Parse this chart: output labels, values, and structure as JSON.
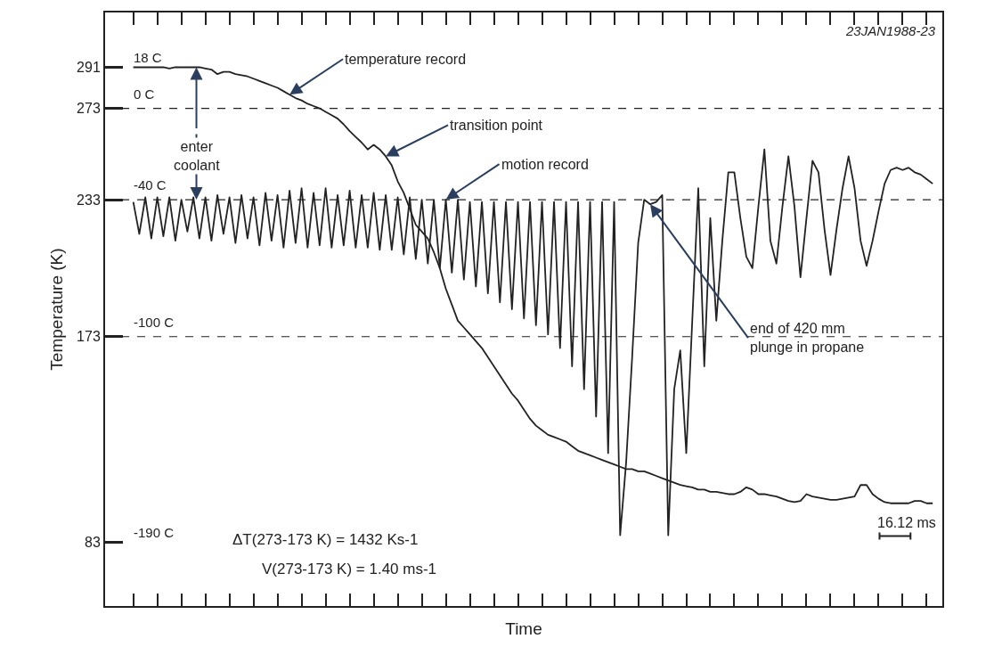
{
  "chart_data": {
    "type": "line",
    "xlabel": "Time",
    "ylabel": "Temperature (K)",
    "categories": [
      null,
      null,
      null,
      null,
      null,
      null,
      null,
      null,
      null,
      null,
      null,
      null,
      null,
      null,
      null,
      null,
      null,
      null,
      null,
      null,
      null,
      null,
      null,
      null,
      null,
      null,
      null,
      null,
      null,
      null,
      null,
      null,
      null,
      null,
      null,
      null,
      null,
      null,
      null,
      null,
      null,
      null,
      null,
      null,
      null,
      null,
      null,
      null,
      null,
      null,
      null,
      null,
      null,
      null,
      null,
      null,
      null,
      null,
      null,
      null,
      null,
      null,
      null,
      null,
      null,
      null,
      null,
      null,
      null,
      null,
      null,
      null,
      null,
      null,
      null,
      null,
      null,
      null,
      null,
      null,
      null,
      null,
      null,
      null,
      null,
      null,
      null,
      null,
      null,
      null,
      null,
      null,
      null,
      null,
      null,
      null,
      null,
      null,
      null,
      null,
      null,
      null,
      null,
      null,
      null,
      null,
      null,
      null,
      null,
      null,
      null,
      null,
      null,
      null,
      null,
      null,
      null,
      null,
      null,
      null,
      null,
      null,
      null,
      null,
      null,
      null,
      null,
      null,
      null,
      null,
      null,
      null,
      null,
      null
    ],
    "series": [
      {
        "color": "#222222",
        "values": [
          291,
          291,
          291,
          291,
          291,
          291,
          290.5,
          291,
          291,
          291,
          291,
          291,
          290.5,
          290,
          288,
          289,
          289,
          288,
          287.5,
          287,
          286,
          285,
          284,
          283,
          282,
          280.5,
          279,
          277.5,
          276.5,
          275,
          274,
          273,
          271.5,
          270,
          268.5,
          266,
          263,
          260.5,
          258,
          255,
          257,
          255,
          252,
          248,
          241,
          236,
          229,
          222,
          219,
          216,
          210,
          203,
          194,
          187,
          180,
          177,
          174,
          171,
          168,
          164,
          160,
          156,
          152,
          148,
          145,
          141,
          137,
          134,
          132,
          130,
          129,
          128,
          127,
          125,
          123,
          122,
          121,
          120,
          119,
          118,
          117,
          116,
          115,
          115,
          114,
          114,
          113,
          112,
          111,
          110,
          109,
          108,
          107.5,
          107,
          106,
          106,
          105,
          105,
          104.5,
          104,
          104,
          105,
          107,
          106,
          104,
          104,
          103.5,
          103,
          102,
          101,
          100.5,
          101,
          104,
          103,
          102.5,
          102,
          101.5,
          101.5,
          102,
          102.5,
          103,
          108,
          108,
          104,
          102,
          100.5,
          100,
          100,
          100,
          100,
          101,
          101,
          100,
          100
        ]
      },
      {
        "color": "#222222",
        "values": [
          232,
          218,
          234,
          216,
          234,
          217,
          234,
          215,
          233,
          219,
          234,
          216,
          234,
          215,
          235,
          218,
          234,
          214,
          235,
          216,
          234,
          213,
          236,
          215,
          235,
          212,
          237,
          214,
          238,
          212,
          236,
          213,
          238,
          212,
          235,
          213,
          237,
          212,
          235,
          212,
          236,
          211,
          235,
          211,
          234,
          209,
          234,
          207,
          233,
          205,
          233,
          203,
          233,
          201,
          233,
          198,
          232,
          195,
          232,
          192,
          232,
          188,
          232,
          185,
          232,
          181,
          232,
          178,
          232,
          174,
          232,
          168,
          232,
          160,
          232,
          150,
          232,
          138,
          232,
          122,
          232,
          86,
          118,
          164,
          214,
          233,
          231,
          232,
          235,
          86,
          150,
          167,
          122,
          180,
          238,
          160,
          225,
          180,
          215,
          245,
          245,
          225,
          208,
          203,
          230,
          255,
          215,
          205,
          230,
          252,
          230,
          199,
          225,
          250,
          245,
          220,
          200,
          220,
          238,
          252,
          238,
          215,
          204,
          215,
          228,
          240,
          246,
          247,
          246,
          247,
          245,
          244,
          242,
          240
        ]
      }
    ],
    "ylim": [
      55,
      315
    ],
    "yticks": [
      83,
      173,
      233,
      273,
      291
    ],
    "ref_lines": [
      {
        "axis": "y",
        "value": 273,
        "label": "0 C",
        "line_style": "dashed"
      },
      {
        "axis": "y",
        "value": 233,
        "label": "-40 C",
        "line_style": "dashed"
      },
      {
        "axis": "y",
        "value": 173,
        "label": "-100 C",
        "line_style": "dashed"
      }
    ],
    "annotations": [
      "23JAN1988-23",
      "temperature record",
      "transition point",
      "motion record",
      "end of 420 mm\nplunge in propane",
      {
        "text": "enter\ncoolant",
        "y": 291
      },
      {
        "text": "18 C",
        "y": 291
      },
      "-190 C",
      "ΔT(273-173 K) = 1432 Ks-1",
      "V(273-173 K) = 1.40 ms-1",
      "16.12 ms"
    ],
    "grid": false,
    "legend": false,
    "marker": "none",
    "line_style": "solid"
  }
}
